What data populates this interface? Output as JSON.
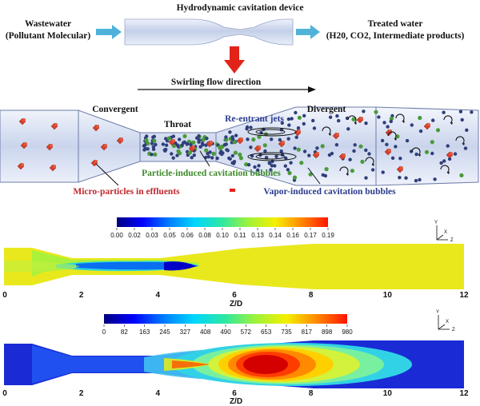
{
  "top": {
    "device_title": "Hydrodynamic cavitation device",
    "input_label_line1": "Wastewater",
    "input_label_line2": "(Pollutant Molecular)",
    "output_label_line1": "Treated water",
    "output_label_line2": "(H20, CO2, Intermediate products)"
  },
  "venturi": {
    "flow_direction": "Swirling flow direction",
    "convergent": "Convergent",
    "throat": "Throat",
    "reentrant": "Re-entrant jets",
    "divergent": "Divergent",
    "particle_bubbles": "Particle-induced cavitation bubbles",
    "vapor_bubbles": "Vapor-induced cavitation bubbles",
    "microparticles": "Micro-particles in effluents"
  },
  "plot1": {
    "colorbar_ticks": [
      "0.00",
      "0.02",
      "0.03",
      "0.05",
      "0.06",
      "0.08",
      "0.10",
      "0.11",
      "0.13",
      "0.14",
      "0.16",
      "0.17",
      "0.19"
    ],
    "x_ticks": [
      "0",
      "2",
      "4",
      "6",
      "8",
      "10",
      "12"
    ],
    "xlabel": "Z/D"
  },
  "plot2": {
    "colorbar_ticks": [
      "0",
      "82",
      "163",
      "245",
      "327",
      "408",
      "490",
      "572",
      "653",
      "735",
      "817",
      "898",
      "980"
    ],
    "x_ticks": [
      "0",
      "2",
      "4",
      "6",
      "8",
      "10",
      "12"
    ],
    "xlabel": "Z/D"
  },
  "axes_triad": {
    "y": "Y",
    "x": "X",
    "z": "Z"
  },
  "colors": {
    "arrow_cyan": "#4fb3d9",
    "arrow_red": "#e2231a",
    "label_red": "#c0282e",
    "label_blue": "#2a3b8f",
    "label_green": "#3d8a2a",
    "pipe": "#c9d3ea",
    "particle_red": "#d9412b",
    "bubble_blue": "#2f3f7a",
    "bubble_green": "#4a9a3a"
  }
}
